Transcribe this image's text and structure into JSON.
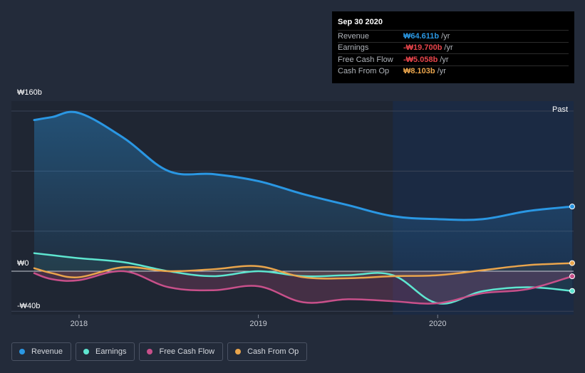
{
  "tooltip": {
    "date": "Sep 30 2020",
    "unit": "/yr",
    "rows": [
      {
        "label": "Revenue",
        "value": "₩64.611b",
        "color": "#2a97e3"
      },
      {
        "label": "Earnings",
        "value": "-₩19.700b",
        "color": "#e8454b"
      },
      {
        "label": "Free Cash Flow",
        "value": "-₩5.058b",
        "color": "#e8454b"
      },
      {
        "label": "Cash From Op",
        "value": "₩8.103b",
        "color": "#eaa54c"
      }
    ]
  },
  "chart_data": {
    "type": "line",
    "title": "",
    "xlabel": "",
    "ylabel": "",
    "y_tick_labels": [
      "₩160b",
      "₩0",
      "-₩40b"
    ],
    "x_tick_labels": [
      "2018",
      "2019",
      "2020"
    ],
    "past_label": "Past",
    "xlim": [
      2017.75,
      2020.75
    ],
    "ylim": [
      -40,
      160
    ],
    "forecast_start": 2019.75,
    "x": [
      2017.75,
      2017.85,
      2018.0,
      2018.25,
      2018.5,
      2018.75,
      2019.0,
      2019.25,
      2019.5,
      2019.75,
      2020.0,
      2020.25,
      2020.5,
      2020.75
    ],
    "series": [
      {
        "name": "Revenue",
        "color": "#2a97e3",
        "values": [
          151,
          154,
          158,
          133,
          100,
          97,
          90,
          77,
          66,
          55,
          52,
          52,
          60,
          64.6
        ]
      },
      {
        "name": "Earnings",
        "color": "#5ee6d0",
        "values": [
          18,
          16,
          13,
          9,
          0,
          -5,
          0,
          -5,
          -4,
          -4,
          -32,
          -20,
          -16,
          -19.7
        ]
      },
      {
        "name": "Free Cash Flow",
        "color": "#c8508a",
        "values": [
          -2,
          -8,
          -9,
          0,
          -16,
          -19,
          -15,
          -31,
          -28,
          -30,
          -32,
          -22,
          -18,
          -5.058
        ]
      },
      {
        "name": "Cash From Op",
        "color": "#eaa54c",
        "values": [
          3,
          -2,
          -6,
          4,
          0,
          2,
          5,
          -6,
          -7,
          -5,
          -4,
          1,
          6,
          8.103
        ]
      }
    ],
    "legend_position": "bottom-left",
    "grid": true
  },
  "legend": [
    {
      "label": "Revenue",
      "color": "#2a97e3"
    },
    {
      "label": "Earnings",
      "color": "#5ee6d0"
    },
    {
      "label": "Free Cash Flow",
      "color": "#c8508a"
    },
    {
      "label": "Cash From Op",
      "color": "#eaa54c"
    }
  ]
}
